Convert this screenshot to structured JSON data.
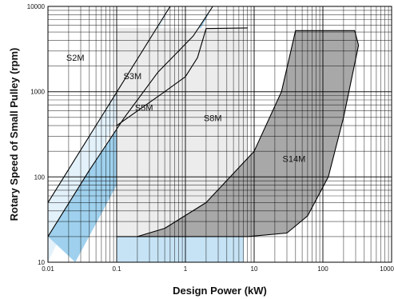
{
  "chart_data": {
    "type": "area",
    "xlabel": "Design Power (kW)",
    "ylabel": "Rotary Speed of Small Pulley (rpm)",
    "xscale": "log",
    "yscale": "log",
    "xlim": [
      0.01,
      1000
    ],
    "ylim": [
      10,
      10000
    ],
    "grid": true,
    "x_ticks": [
      {
        "value": 0.01,
        "label": "0.01"
      },
      {
        "value": 0.1,
        "label": "0.1"
      },
      {
        "value": 1,
        "label": "1"
      },
      {
        "value": 10,
        "label": "10"
      },
      {
        "value": 100,
        "label": "100"
      },
      {
        "value": 1000,
        "label": "1000"
      }
    ],
    "y_ticks": [
      {
        "value": 10,
        "label": "10"
      },
      {
        "value": 100,
        "label": "100"
      },
      {
        "value": 1000,
        "label": "1000"
      },
      {
        "value": 10000,
        "label": "10000"
      }
    ],
    "regions": [
      {
        "name": "S2M",
        "fill": "#e3f1fa",
        "label_at": [
          0.025,
          2300
        ],
        "boundary": [
          [
            0.01,
            10
          ],
          [
            0.01,
            50
          ],
          [
            0.6,
            10000
          ]
        ]
      },
      {
        "name": "S3M",
        "fill": "#9fd1ee",
        "label_at": [
          0.17,
          1400
        ],
        "boundary": [
          [
            0.025,
            10
          ],
          [
            0.01,
            20
          ],
          [
            0.04,
            120
          ],
          [
            0.13,
            500
          ],
          [
            0.4,
            1700
          ],
          [
            1.3,
            4500
          ],
          [
            2.5,
            10000
          ]
        ]
      },
      {
        "name": "S5M",
        "fill": "#c6e3f5",
        "label_at": [
          0.25,
          600
        ],
        "boundary": [
          [
            0.1,
            10
          ],
          [
            0.1,
            400
          ],
          [
            0.5,
            1000
          ],
          [
            1,
            1500
          ],
          [
            1.5,
            2500
          ],
          [
            2,
            5500
          ],
          [
            8,
            5600
          ],
          [
            7,
            10
          ],
          [
            0.01,
            10
          ]
        ]
      },
      {
        "name": "S8M",
        "fill": "#ececec",
        "label_at": [
          2.5,
          450
        ],
        "boundary": [
          [
            0.1,
            20
          ],
          [
            8,
            20
          ],
          [
            8,
            5600
          ],
          [
            0.1,
            5600
          ]
        ]
      },
      {
        "name": "S14M",
        "fill": "#a8a8a8",
        "label_at": [
          38,
          150
        ],
        "boundary": [
          [
            0.2,
            20
          ],
          [
            0.5,
            25
          ],
          [
            2,
            50
          ],
          [
            10,
            200
          ],
          [
            25,
            1000
          ],
          [
            40,
            5200
          ],
          [
            290,
            5200
          ],
          [
            330,
            3500
          ],
          [
            200,
            500
          ],
          [
            120,
            100
          ],
          [
            60,
            35
          ],
          [
            30,
            22
          ],
          [
            8,
            20
          ]
        ]
      }
    ],
    "curves": [
      {
        "name": "S2M",
        "points": [
          [
            0.01,
            50
          ],
          [
            0.6,
            10000
          ]
        ]
      },
      {
        "name": "S3M",
        "points": [
          [
            0.01,
            20
          ],
          [
            0.04,
            120
          ],
          [
            0.13,
            500
          ],
          [
            0.4,
            1700
          ],
          [
            1.3,
            4500
          ],
          [
            2.5,
            10000
          ]
        ]
      },
      {
        "name": "S5M",
        "points": [
          [
            0.1,
            400
          ],
          [
            0.5,
            1000
          ],
          [
            1,
            1500
          ],
          [
            1.5,
            2500
          ],
          [
            2,
            5500
          ],
          [
            8,
            5600
          ]
        ]
      },
      {
        "name": "S14M",
        "points": [
          [
            0.2,
            20
          ],
          [
            0.5,
            25
          ],
          [
            2,
            50
          ],
          [
            10,
            200
          ],
          [
            25,
            1000
          ],
          [
            40,
            5200
          ],
          [
            290,
            5200
          ],
          [
            330,
            3500
          ],
          [
            200,
            500
          ],
          [
            120,
            100
          ],
          [
            60,
            35
          ],
          [
            30,
            22
          ],
          [
            8,
            20
          ]
        ]
      }
    ]
  }
}
